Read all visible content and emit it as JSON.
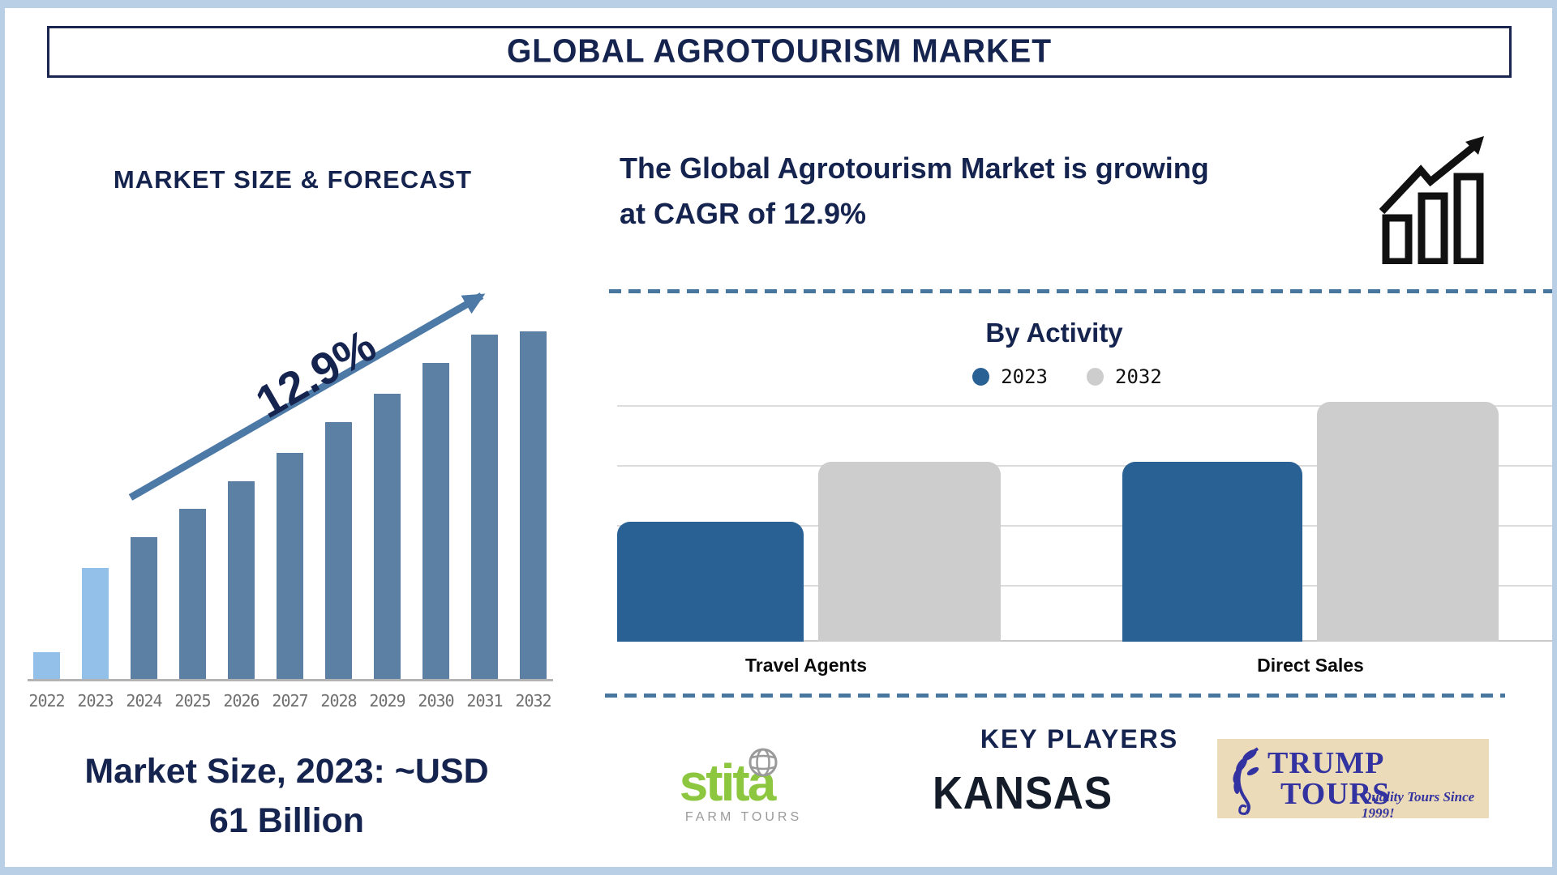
{
  "page": {
    "title": "GLOBAL AGROTOURISM MARKET"
  },
  "left": {
    "section_title": "MARKET SIZE & FORECAST",
    "growth_label": "12.9%",
    "note_lines": [
      "Market Size, 2023: ~USD",
      "61 Billion"
    ]
  },
  "right": {
    "cagr_lines": [
      "The Global Agrotourism Market is growing",
      "at CAGR of 12.9%"
    ],
    "by_activity_title": "By Activity",
    "legend": [
      {
        "label": "2023",
        "color": "#2a6195"
      },
      {
        "label": "2032",
        "color": "#cdcdcd"
      }
    ],
    "categories": [
      "Travel Agents",
      "Direct Sales"
    ],
    "key_players_title": "KEY PLAYERS",
    "logos": {
      "stita": {
        "name": "stita",
        "tagline": "FARM TOURS"
      },
      "kansas": {
        "name": "KANSAS"
      },
      "trump": {
        "line1": "TRUMP",
        "line2": "TOURS",
        "tagline": "Quality Tours Since 1999!"
      }
    }
  },
  "colors": {
    "navy_text": "#15234f",
    "steel_bar": "#5c80a3",
    "light_bar": "#92c0e8",
    "trend_arrow": "#4c79a6",
    "activity_blue": "#2a6195",
    "activity_gray": "#cdcdcd",
    "frame_border": "#b9cfe5",
    "stita_green": "#8dc63f",
    "trump_blue": "#3232a0",
    "trump_beige": "#ecdbb8"
  },
  "chart_data": [
    {
      "type": "bar",
      "title": "MARKET SIZE & FORECAST",
      "categories": [
        "2022",
        "2023",
        "2024",
        "2025",
        "2026",
        "2027",
        "2028",
        "2029",
        "2030",
        "2031",
        "2032"
      ],
      "values_relative_pct": [
        8,
        32,
        41,
        49,
        57,
        65,
        74,
        82,
        91,
        99,
        100
      ],
      "value_axis": "none shown - illustrative bar heights as % of tallest (2032) bar",
      "known_value": "2023 market size ~USD 61 Billion",
      "annotation": "12.9% CAGR trend arrow rising left-to-right",
      "bar_color_note": "2022 and 2023 light blue, 2024-2032 steel blue",
      "xlabel": "",
      "ylabel": "",
      "grid": false
    },
    {
      "type": "bar",
      "title": "By Activity",
      "categories": [
        "Travel Agents",
        "Direct Sales"
      ],
      "series": [
        {
          "name": "2023",
          "values": [
            2,
            3
          ],
          "color": "#2a6195"
        },
        {
          "name": "2032",
          "values": [
            3,
            4
          ],
          "color": "#cdcdcd"
        }
      ],
      "units": "gridline units (no numeric axis labels shown)",
      "ylim": [
        0,
        4
      ],
      "grid": "horizontal gridlines at 1-unit spacing",
      "legend_position": "top center",
      "bar_style": "rounded top corners"
    }
  ]
}
